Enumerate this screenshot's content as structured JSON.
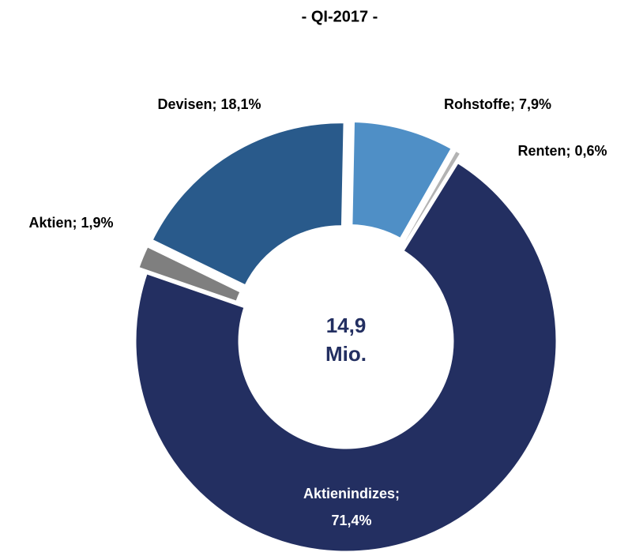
{
  "chart_data": {
    "type": "pie",
    "title": "- QI-2017 -",
    "center_label": "14,9 Mio.",
    "values": [
      7.9,
      0.6,
      71.4,
      1.9,
      18.1
    ],
    "value_labels": [
      "Rohstoffe; 7,9%",
      "Renten; 0,6%",
      "Aktienindizes; 71,4%",
      "Aktien; 1,9%",
      "Devisen; 18,1%"
    ],
    "colors": [
      "#4f8fc6",
      "#b3b3b3",
      "#232f61",
      "#7f7f7f",
      "#295a8b"
    ],
    "donut": true
  }
}
